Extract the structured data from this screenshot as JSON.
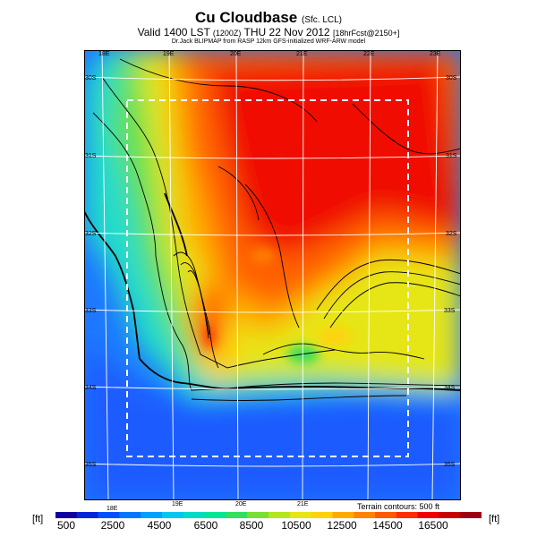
{
  "header": {
    "title": "Cu Cloudbase",
    "title_suffix": "(Sfc. LCL)",
    "valid_prefix": "Valid 1400 LST",
    "valid_code": "(1200Z)",
    "valid_date": "THU 22 Nov 2012",
    "valid_forecast": "[18hrFcst@2150+]",
    "subtitle": "Dr.Jack BLIPMAP from RASP 12km GFS-initialized WRF-ARW model"
  },
  "map": {
    "lon_labels_top": [
      "18E",
      "19E",
      "20E",
      "21E",
      "22E",
      "23E"
    ],
    "lon_labels_bottom": [
      "18E",
      "19E",
      "20E",
      "21E"
    ],
    "lat_labels_left": [
      "30S",
      "31S",
      "32S",
      "33S",
      "34S",
      "35S"
    ],
    "lat_labels_right": [
      "30S",
      "31S",
      "32S",
      "33S",
      "34S",
      "35S"
    ],
    "terrain_note": "Terrain contours: 500 ft"
  },
  "colorbar": {
    "unit_left": "[ft]",
    "unit_right": "[ft]",
    "labels": [
      "500",
      "2500",
      "4500",
      "6500",
      "8500",
      "10500",
      "12500",
      "14500",
      "16500"
    ],
    "colors": [
      "#1400a0",
      "#0028d8",
      "#0050ff",
      "#0078ff",
      "#00a0ff",
      "#00c8f0",
      "#00dcc8",
      "#00e696",
      "#30e060",
      "#78e030",
      "#b4e61e",
      "#e6e614",
      "#ffd20a",
      "#ffaa00",
      "#ff8200",
      "#ff5a00",
      "#ff2d00",
      "#f00000",
      "#c80000",
      "#a00014"
    ]
  }
}
